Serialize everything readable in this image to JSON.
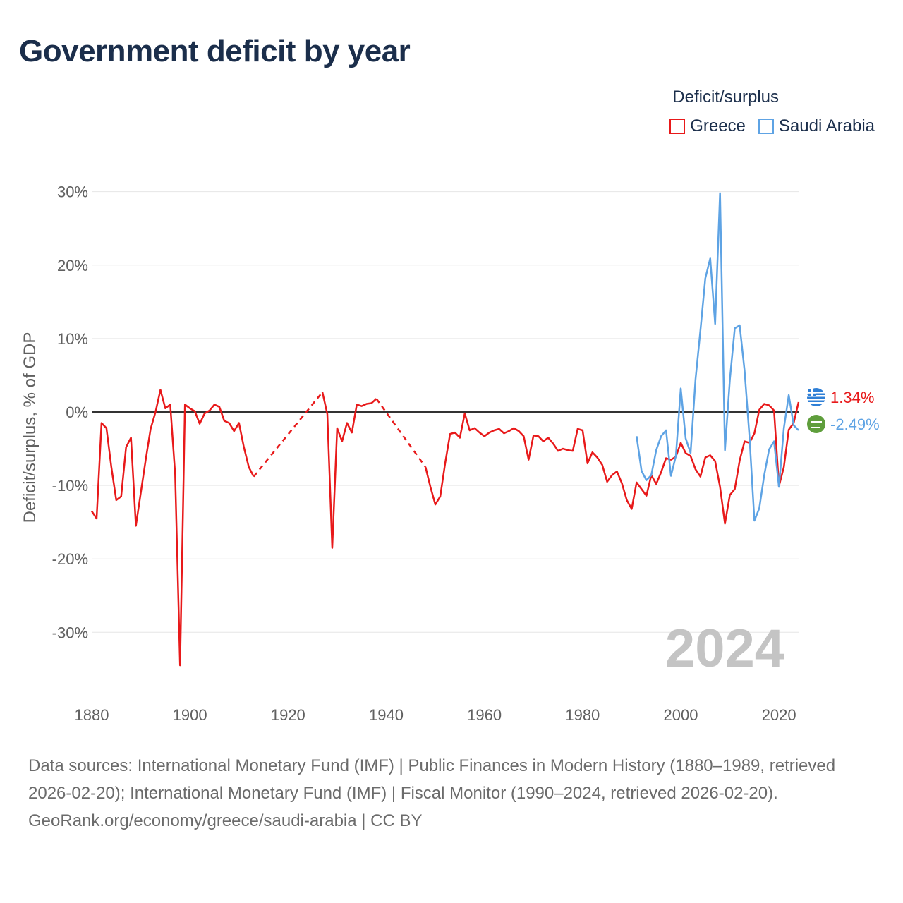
{
  "title": "Government deficit by year",
  "legend": {
    "title": "Deficit/surplus",
    "items": [
      {
        "label": "Greece",
        "color": "#e8191a"
      },
      {
        "label": "Saudi Arabia",
        "color": "#5ea3e4"
      }
    ]
  },
  "footer": {
    "sources": "Data sources: International Monetary Fund (IMF) | Public Finances in Modern History (1880–1989, retrieved 2026-02-20); International Monetary Fund (IMF) | Fiscal Monitor (1990–2024, retrieved 2026-02-20).",
    "credit": "GeoRank.org/economy/greece/saudi-arabia | CC BY"
  },
  "chart_data": {
    "type": "line",
    "title": "Government deficit by year",
    "xlabel": "",
    "ylabel": "Deficit/surplus, % of GDP",
    "year_label": "2024",
    "xlim": [
      1880,
      2024
    ],
    "ylim": [
      -39,
      34
    ],
    "x_ticks": [
      1880,
      1900,
      1920,
      1940,
      1960,
      1980,
      2000,
      2020
    ],
    "y_ticks": [
      30,
      20,
      10,
      0,
      -10,
      -20,
      -30
    ],
    "y_tick_labels": [
      "30%",
      "20%",
      "10%",
      "0%",
      "-10%",
      "-20%",
      "-30%"
    ],
    "zero_line": true,
    "gridlines": "horizontal",
    "end_labels": [
      {
        "series": "Greece",
        "value": 1.34,
        "text": "1.34%",
        "icon": "greece-flag-icon"
      },
      {
        "series": "Saudi Arabia",
        "value": -2.49,
        "text": "-2.49%",
        "icon": "saudi-arabia-flag-icon"
      }
    ],
    "series": [
      {
        "name": "Greece",
        "color": "#e8191a",
        "gaps": [
          [
            1913,
            1927
          ],
          [
            1938,
            1948
          ]
        ],
        "points": [
          [
            1880,
            -13.5
          ],
          [
            1881,
            -14.5
          ],
          [
            1882,
            -1.5
          ],
          [
            1883,
            -2.2
          ],
          [
            1884,
            -7.5
          ],
          [
            1885,
            -12
          ],
          [
            1886,
            -11.5
          ],
          [
            1887,
            -4.8
          ],
          [
            1888,
            -3.5
          ],
          [
            1889,
            -15.5
          ],
          [
            1890,
            -11
          ],
          [
            1891,
            -6.5
          ],
          [
            1892,
            -2.3
          ],
          [
            1893,
            0
          ],
          [
            1894,
            3
          ],
          [
            1895,
            0.5
          ],
          [
            1896,
            1
          ],
          [
            1897,
            -8.5
          ],
          [
            1898,
            -34.5
          ],
          [
            1899,
            1
          ],
          [
            1900,
            0.5
          ],
          [
            1901,
            0.1
          ],
          [
            1902,
            -1.6
          ],
          [
            1903,
            -0.2
          ],
          [
            1904,
            0.2
          ],
          [
            1905,
            1
          ],
          [
            1906,
            0.7
          ],
          [
            1907,
            -1.2
          ],
          [
            1908,
            -1.5
          ],
          [
            1909,
            -2.6
          ],
          [
            1910,
            -1.5
          ],
          [
            1911,
            -4.8
          ],
          [
            1912,
            -7.5
          ],
          [
            1913,
            -8.8
          ],
          [
            1927,
            2.7
          ],
          [
            1928,
            -0.3
          ],
          [
            1929,
            -18.5
          ],
          [
            1930,
            -2.2
          ],
          [
            1931,
            -4
          ],
          [
            1932,
            -1.5
          ],
          [
            1933,
            -2.8
          ],
          [
            1934,
            1
          ],
          [
            1935,
            0.8
          ],
          [
            1936,
            1.1
          ],
          [
            1937,
            1.2
          ],
          [
            1938,
            1.8
          ],
          [
            1948,
            -7.5
          ],
          [
            1949,
            -10.2
          ],
          [
            1950,
            -12.6
          ],
          [
            1951,
            -11.5
          ],
          [
            1952,
            -7
          ],
          [
            1953,
            -3
          ],
          [
            1954,
            -2.8
          ],
          [
            1955,
            -3.5
          ],
          [
            1956,
            -0.2
          ],
          [
            1957,
            -2.5
          ],
          [
            1958,
            -2.2
          ],
          [
            1959,
            -2.8
          ],
          [
            1960,
            -3.3
          ],
          [
            1961,
            -2.8
          ],
          [
            1962,
            -2.5
          ],
          [
            1963,
            -2.3
          ],
          [
            1964,
            -2.9
          ],
          [
            1965,
            -2.6
          ],
          [
            1966,
            -2.2
          ],
          [
            1967,
            -2.6
          ],
          [
            1968,
            -3.3
          ],
          [
            1969,
            -6.5
          ],
          [
            1970,
            -3.2
          ],
          [
            1971,
            -3.3
          ],
          [
            1972,
            -4
          ],
          [
            1973,
            -3.5
          ],
          [
            1974,
            -4.3
          ],
          [
            1975,
            -5.3
          ],
          [
            1976,
            -5
          ],
          [
            1977,
            -5.2
          ],
          [
            1978,
            -5.3
          ],
          [
            1979,
            -2.3
          ],
          [
            1980,
            -2.5
          ],
          [
            1981,
            -7
          ],
          [
            1982,
            -5.5
          ],
          [
            1983,
            -6.2
          ],
          [
            1984,
            -7.2
          ],
          [
            1985,
            -9.5
          ],
          [
            1986,
            -8.6
          ],
          [
            1987,
            -8.1
          ],
          [
            1988,
            -9.7
          ],
          [
            1989,
            -12
          ],
          [
            1990,
            -13.2
          ],
          [
            1991,
            -9.6
          ],
          [
            1992,
            -10.5
          ],
          [
            1993,
            -11.4
          ],
          [
            1994,
            -8.6
          ],
          [
            1995,
            -9.8
          ],
          [
            1996,
            -8.2
          ],
          [
            1997,
            -6.3
          ],
          [
            1998,
            -6.5
          ],
          [
            1999,
            -6.1
          ],
          [
            2000,
            -4.2
          ],
          [
            2001,
            -5.6
          ],
          [
            2002,
            -6
          ],
          [
            2003,
            -7.8
          ],
          [
            2004,
            -8.8
          ],
          [
            2005,
            -6.2
          ],
          [
            2006,
            -5.9
          ],
          [
            2007,
            -6.7
          ],
          [
            2008,
            -10.2
          ],
          [
            2009,
            -15.2
          ],
          [
            2010,
            -11.3
          ],
          [
            2011,
            -10.5
          ],
          [
            2012,
            -6.6
          ],
          [
            2013,
            -4
          ],
          [
            2014,
            -4.2
          ],
          [
            2015,
            -2.9
          ],
          [
            2016,
            0.3
          ],
          [
            2017,
            1.1
          ],
          [
            2018,
            0.9
          ],
          [
            2019,
            0.2
          ],
          [
            2020,
            -10.1
          ],
          [
            2021,
            -7.5
          ],
          [
            2022,
            -2.4
          ],
          [
            2023,
            -1.5
          ],
          [
            2024,
            1.34
          ]
        ]
      },
      {
        "name": "Saudi Arabia",
        "color": "#5ea3e4",
        "gaps": [],
        "points": [
          [
            1991,
            -3.3
          ],
          [
            1992,
            -8
          ],
          [
            1993,
            -9.3
          ],
          [
            1994,
            -8.6
          ],
          [
            1995,
            -5.2
          ],
          [
            1996,
            -3.3
          ],
          [
            1997,
            -2.5
          ],
          [
            1998,
            -8.7
          ],
          [
            1999,
            -6
          ],
          [
            2000,
            3.2
          ],
          [
            2001,
            -3.6
          ],
          [
            2002,
            -5.6
          ],
          [
            2003,
            4.4
          ],
          [
            2004,
            11.1
          ],
          [
            2005,
            18.2
          ],
          [
            2006,
            20.9
          ],
          [
            2007,
            12
          ],
          [
            2008,
            29.8
          ],
          [
            2009,
            -5.2
          ],
          [
            2010,
            4.4
          ],
          [
            2011,
            11.4
          ],
          [
            2012,
            11.8
          ],
          [
            2013,
            5.6
          ],
          [
            2014,
            -3.4
          ],
          [
            2015,
            -14.8
          ],
          [
            2016,
            -13.1
          ],
          [
            2017,
            -8.6
          ],
          [
            2018,
            -5.1
          ],
          [
            2019,
            -4
          ],
          [
            2020,
            -10.2
          ],
          [
            2021,
            -2.2
          ],
          [
            2022,
            2.3
          ],
          [
            2023,
            -1.8
          ],
          [
            2024,
            -2.49
          ]
        ]
      }
    ]
  }
}
